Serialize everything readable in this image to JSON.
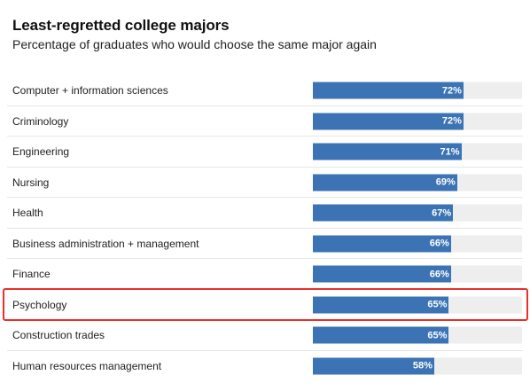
{
  "chart_data": {
    "type": "bar",
    "orientation": "horizontal",
    "title": "Least-regretted college majors",
    "subtitle": "Percentage of graduates who would choose the same major again",
    "xlabel": "",
    "ylabel": "",
    "xlim": [
      0,
      100
    ],
    "grid": false,
    "categories": [
      "Computer + information sciences",
      "Criminology",
      "Engineering",
      "Nursing",
      "Health",
      "Business administration + management",
      "Finance",
      "Psychology",
      "Construction trades",
      "Human resources management"
    ],
    "values": [
      72,
      72,
      71,
      69,
      67,
      66,
      66,
      65,
      65,
      58
    ],
    "value_labels": [
      "72%",
      "72%",
      "71%",
      "69%",
      "67%",
      "66%",
      "66%",
      "65%",
      "65%",
      "58%"
    ],
    "highlighted_category": "Psychology"
  },
  "colors": {
    "bar": "#3b73b5",
    "track": "#eeeeee",
    "highlight": "#e8302a",
    "value_text": "#ffffff"
  }
}
